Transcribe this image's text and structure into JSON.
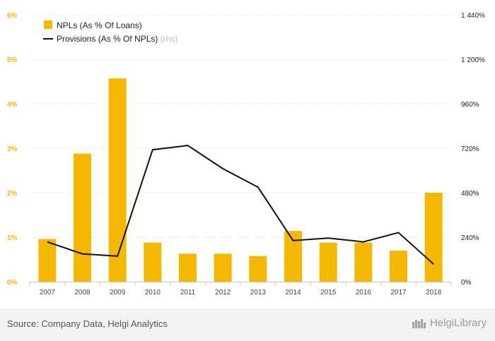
{
  "chart_data": {
    "type": "bar",
    "categories": [
      "2007",
      "2008",
      "2009",
      "2010",
      "2011",
      "2012",
      "2013",
      "2014",
      "2015",
      "2016",
      "2017",
      "2018"
    ],
    "series": [
      {
        "name": "NPLs (As % Of Loans)",
        "type": "bar",
        "axis": "left",
        "color": "#f5b800",
        "values": [
          0.96,
          2.88,
          4.57,
          0.88,
          0.63,
          0.63,
          0.58,
          1.14,
          0.88,
          0.88,
          0.7,
          2.0
        ]
      },
      {
        "name": "Provisions (As % Of NPLs)",
        "name_note": "(rhs)",
        "type": "line",
        "axis": "right",
        "color": "#111111",
        "values": [
          215,
          150,
          138,
          712,
          735,
          610,
          510,
          222,
          235,
          215,
          265,
          95
        ]
      }
    ],
    "y_left": {
      "ylim": [
        0,
        6
      ],
      "ticks": [
        "0%",
        "1%",
        "2%",
        "3%",
        "4%",
        "5%",
        "6%"
      ],
      "tick_values": [
        0,
        1,
        2,
        3,
        4,
        5,
        6
      ]
    },
    "y_right": {
      "ylim": [
        0,
        1440
      ],
      "ticks": [
        "0%",
        "240%",
        "480%",
        "720%",
        "960%",
        "1 200%",
        "1 440%"
      ],
      "tick_values": [
        0,
        240,
        480,
        720,
        960,
        1200,
        1440
      ]
    },
    "grid": true,
    "legend_position": "top-left"
  },
  "footer": {
    "source": "Source: Company Data, Helgi Analytics",
    "brand": "HelgiLibrary"
  }
}
